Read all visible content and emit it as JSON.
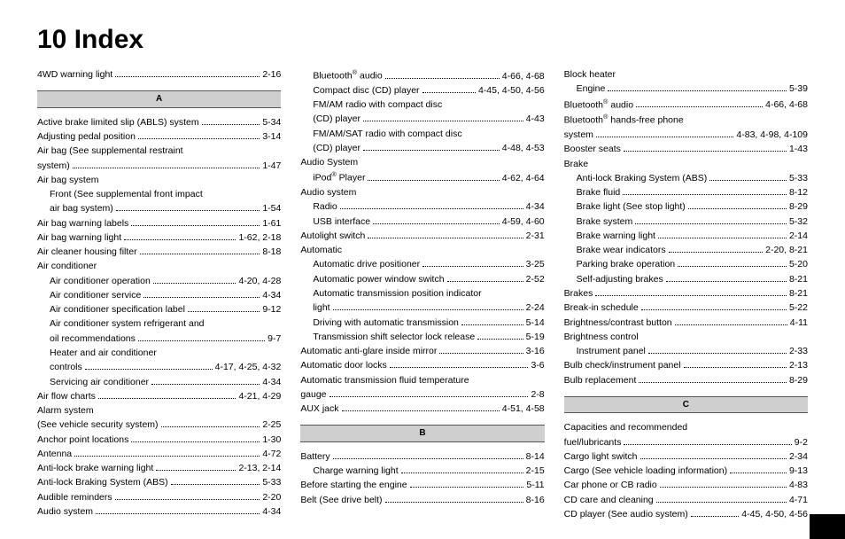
{
  "title": "10  Index",
  "columns": [
    {
      "blocks": [
        {
          "type": "entries",
          "items": [
            {
              "label": "4WD warning light",
              "page": "2-16",
              "indent": 0
            }
          ]
        },
        {
          "type": "header",
          "text": "A"
        },
        {
          "type": "entries",
          "items": [
            {
              "label": "Active brake limited slip (ABLS) system",
              "page": "5-34",
              "indent": 0
            },
            {
              "label": "Adjusting pedal position",
              "page": "3-14",
              "indent": 0
            },
            {
              "label": "Air bag (See supplemental restraint",
              "noref": true,
              "indent": 0
            },
            {
              "label": "system)",
              "page": "1-47",
              "indent": 0
            },
            {
              "label": "Air bag system",
              "noref": true,
              "indent": 0
            },
            {
              "label": "Front (See supplemental front impact",
              "noref": true,
              "indent": 1
            },
            {
              "label": "air bag system)",
              "page": "1-54",
              "indent": 1
            },
            {
              "label": "Air bag warning labels",
              "page": "1-61",
              "indent": 0
            },
            {
              "label": "Air bag warning light",
              "page": "1-62, 2-18",
              "indent": 0
            },
            {
              "label": "Air cleaner housing filter",
              "page": "8-18",
              "indent": 0
            },
            {
              "label": "Air conditioner",
              "noref": true,
              "indent": 0
            },
            {
              "label": "Air conditioner operation",
              "page": "4-20, 4-28",
              "indent": 1
            },
            {
              "label": "Air conditioner service",
              "page": "4-34",
              "indent": 1
            },
            {
              "label": "Air conditioner specification label",
              "page": "9-12",
              "indent": 1
            },
            {
              "label": "Air conditioner system refrigerant and",
              "noref": true,
              "indent": 1
            },
            {
              "label": "oil recommendations",
              "page": "9-7",
              "indent": 1
            },
            {
              "label": "Heater and air conditioner",
              "noref": true,
              "indent": 1
            },
            {
              "label": "controls",
              "page": "4-17, 4-25, 4-32",
              "indent": 1
            },
            {
              "label": "Servicing air conditioner",
              "page": "4-34",
              "indent": 1
            },
            {
              "label": "Air flow charts",
              "page": "4-21, 4-29",
              "indent": 0
            },
            {
              "label": "Alarm system",
              "noref": true,
              "indent": 0
            },
            {
              "label": "(See vehicle security system)",
              "page": "2-25",
              "indent": 0
            },
            {
              "label": "Anchor point locations",
              "page": "1-30",
              "indent": 0
            },
            {
              "label": "Antenna",
              "page": "4-72",
              "indent": 0
            },
            {
              "label": "Anti-lock brake warning light",
              "page": "2-13, 2-14",
              "indent": 0
            },
            {
              "label": "Anti-lock Braking System (ABS)",
              "page": "5-33",
              "indent": 0
            },
            {
              "label": "Audible reminders",
              "page": "2-20",
              "indent": 0
            },
            {
              "label": "Audio system",
              "page": "4-34",
              "indent": 0
            }
          ]
        }
      ]
    },
    {
      "blocks": [
        {
          "type": "entries",
          "items": [
            {
              "label": "Bluetooth® audio",
              "page": "4-66, 4-68",
              "indent": 1
            },
            {
              "label": "Compact disc (CD) player",
              "page": "4-45, 4-50, 4-56",
              "indent": 1
            },
            {
              "label": "FM/AM radio with compact disc",
              "noref": true,
              "indent": 1
            },
            {
              "label": "(CD) player",
              "page": "4-43",
              "indent": 1
            },
            {
              "label": "FM/AM/SAT radio with compact disc",
              "noref": true,
              "indent": 1
            },
            {
              "label": "(CD) player",
              "page": "4-48, 4-53",
              "indent": 1
            },
            {
              "label": "Audio System",
              "noref": true,
              "indent": 0
            },
            {
              "label": "iPod® Player",
              "page": "4-62, 4-64",
              "indent": 1
            },
            {
              "label": "Audio system",
              "noref": true,
              "indent": 0
            },
            {
              "label": "Radio",
              "page": "4-34",
              "indent": 1
            },
            {
              "label": "USB interface",
              "page": "4-59, 4-60",
              "indent": 1
            },
            {
              "label": "Autolight switch",
              "page": "2-31",
              "indent": 0
            },
            {
              "label": "Automatic",
              "noref": true,
              "indent": 0
            },
            {
              "label": "Automatic drive positioner",
              "page": "3-25",
              "indent": 1
            },
            {
              "label": "Automatic power window switch",
              "page": "2-52",
              "indent": 1
            },
            {
              "label": "Automatic transmission position indicator",
              "noref": true,
              "indent": 1
            },
            {
              "label": "light",
              "page": "2-24",
              "indent": 1
            },
            {
              "label": "Driving with automatic transmission",
              "page": "5-14",
              "indent": 1
            },
            {
              "label": "Transmission shift selector lock release",
              "page": "5-19",
              "indent": 1
            },
            {
              "label": "Automatic anti-glare inside mirror",
              "page": "3-16",
              "indent": 0
            },
            {
              "label": "Automatic door locks",
              "page": "3-6",
              "indent": 0
            },
            {
              "label": "Automatic transmission fluid temperature",
              "noref": true,
              "indent": 0
            },
            {
              "label": "gauge",
              "page": "2-8",
              "indent": 0
            },
            {
              "label": "AUX jack",
              "page": "4-51, 4-58",
              "indent": 0
            }
          ]
        },
        {
          "type": "header",
          "text": "B"
        },
        {
          "type": "entries",
          "items": [
            {
              "label": "Battery",
              "page": "8-14",
              "indent": 0
            },
            {
              "label": "Charge warning light",
              "page": "2-15",
              "indent": 1
            },
            {
              "label": "Before starting the engine",
              "page": "5-11",
              "indent": 0
            },
            {
              "label": "Belt (See drive belt)",
              "page": "8-16",
              "indent": 0
            }
          ]
        }
      ]
    },
    {
      "blocks": [
        {
          "type": "entries",
          "items": [
            {
              "label": "Block heater",
              "noref": true,
              "indent": 0
            },
            {
              "label": "Engine",
              "page": "5-39",
              "indent": 1
            },
            {
              "label": "Bluetooth® audio",
              "page": "4-66, 4-68",
              "indent": 0
            },
            {
              "label": "Bluetooth® hands-free phone",
              "noref": true,
              "indent": 0
            },
            {
              "label": "system",
              "page": "4-83, 4-98, 4-109",
              "indent": 0
            },
            {
              "label": "Booster seats",
              "page": "1-43",
              "indent": 0
            },
            {
              "label": "Brake",
              "noref": true,
              "indent": 0
            },
            {
              "label": "Anti-lock Braking System (ABS)",
              "page": "5-33",
              "indent": 1
            },
            {
              "label": "Brake fluid",
              "page": "8-12",
              "indent": 1
            },
            {
              "label": "Brake light (See stop light)",
              "page": "8-29",
              "indent": 1
            },
            {
              "label": "Brake system",
              "page": "5-32",
              "indent": 1
            },
            {
              "label": "Brake warning light",
              "page": "2-14",
              "indent": 1
            },
            {
              "label": "Brake wear indicators",
              "page": "2-20, 8-21",
              "indent": 1
            },
            {
              "label": "Parking brake operation",
              "page": "5-20",
              "indent": 1
            },
            {
              "label": "Self-adjusting brakes",
              "page": "8-21",
              "indent": 1
            },
            {
              "label": "Brakes",
              "page": "8-21",
              "indent": 0
            },
            {
              "label": "Break-in schedule",
              "page": "5-22",
              "indent": 0
            },
            {
              "label": "Brightness/contrast button",
              "page": "4-11",
              "indent": 0
            },
            {
              "label": "Brightness control",
              "noref": true,
              "indent": 0
            },
            {
              "label": "Instrument panel",
              "page": "2-33",
              "indent": 1
            },
            {
              "label": "Bulb check/instrument panel",
              "page": "2-13",
              "indent": 0
            },
            {
              "label": "Bulb replacement",
              "page": "8-29",
              "indent": 0
            }
          ]
        },
        {
          "type": "header",
          "text": "C"
        },
        {
          "type": "entries",
          "items": [
            {
              "label": "Capacities and recommended",
              "noref": true,
              "indent": 0
            },
            {
              "label": "fuel/lubricants",
              "page": "9-2",
              "indent": 0
            },
            {
              "label": "Cargo light switch",
              "page": "2-34",
              "indent": 0
            },
            {
              "label": "Cargo (See vehicle loading information)",
              "page": "9-13",
              "indent": 0
            },
            {
              "label": "Car phone or CB radio",
              "page": "4-83",
              "indent": 0
            },
            {
              "label": "CD care and cleaning",
              "page": "4-71",
              "indent": 0
            },
            {
              "label": "CD player (See audio system)",
              "page": "4-45, 4-50, 4-56",
              "indent": 0
            }
          ]
        }
      ]
    }
  ]
}
